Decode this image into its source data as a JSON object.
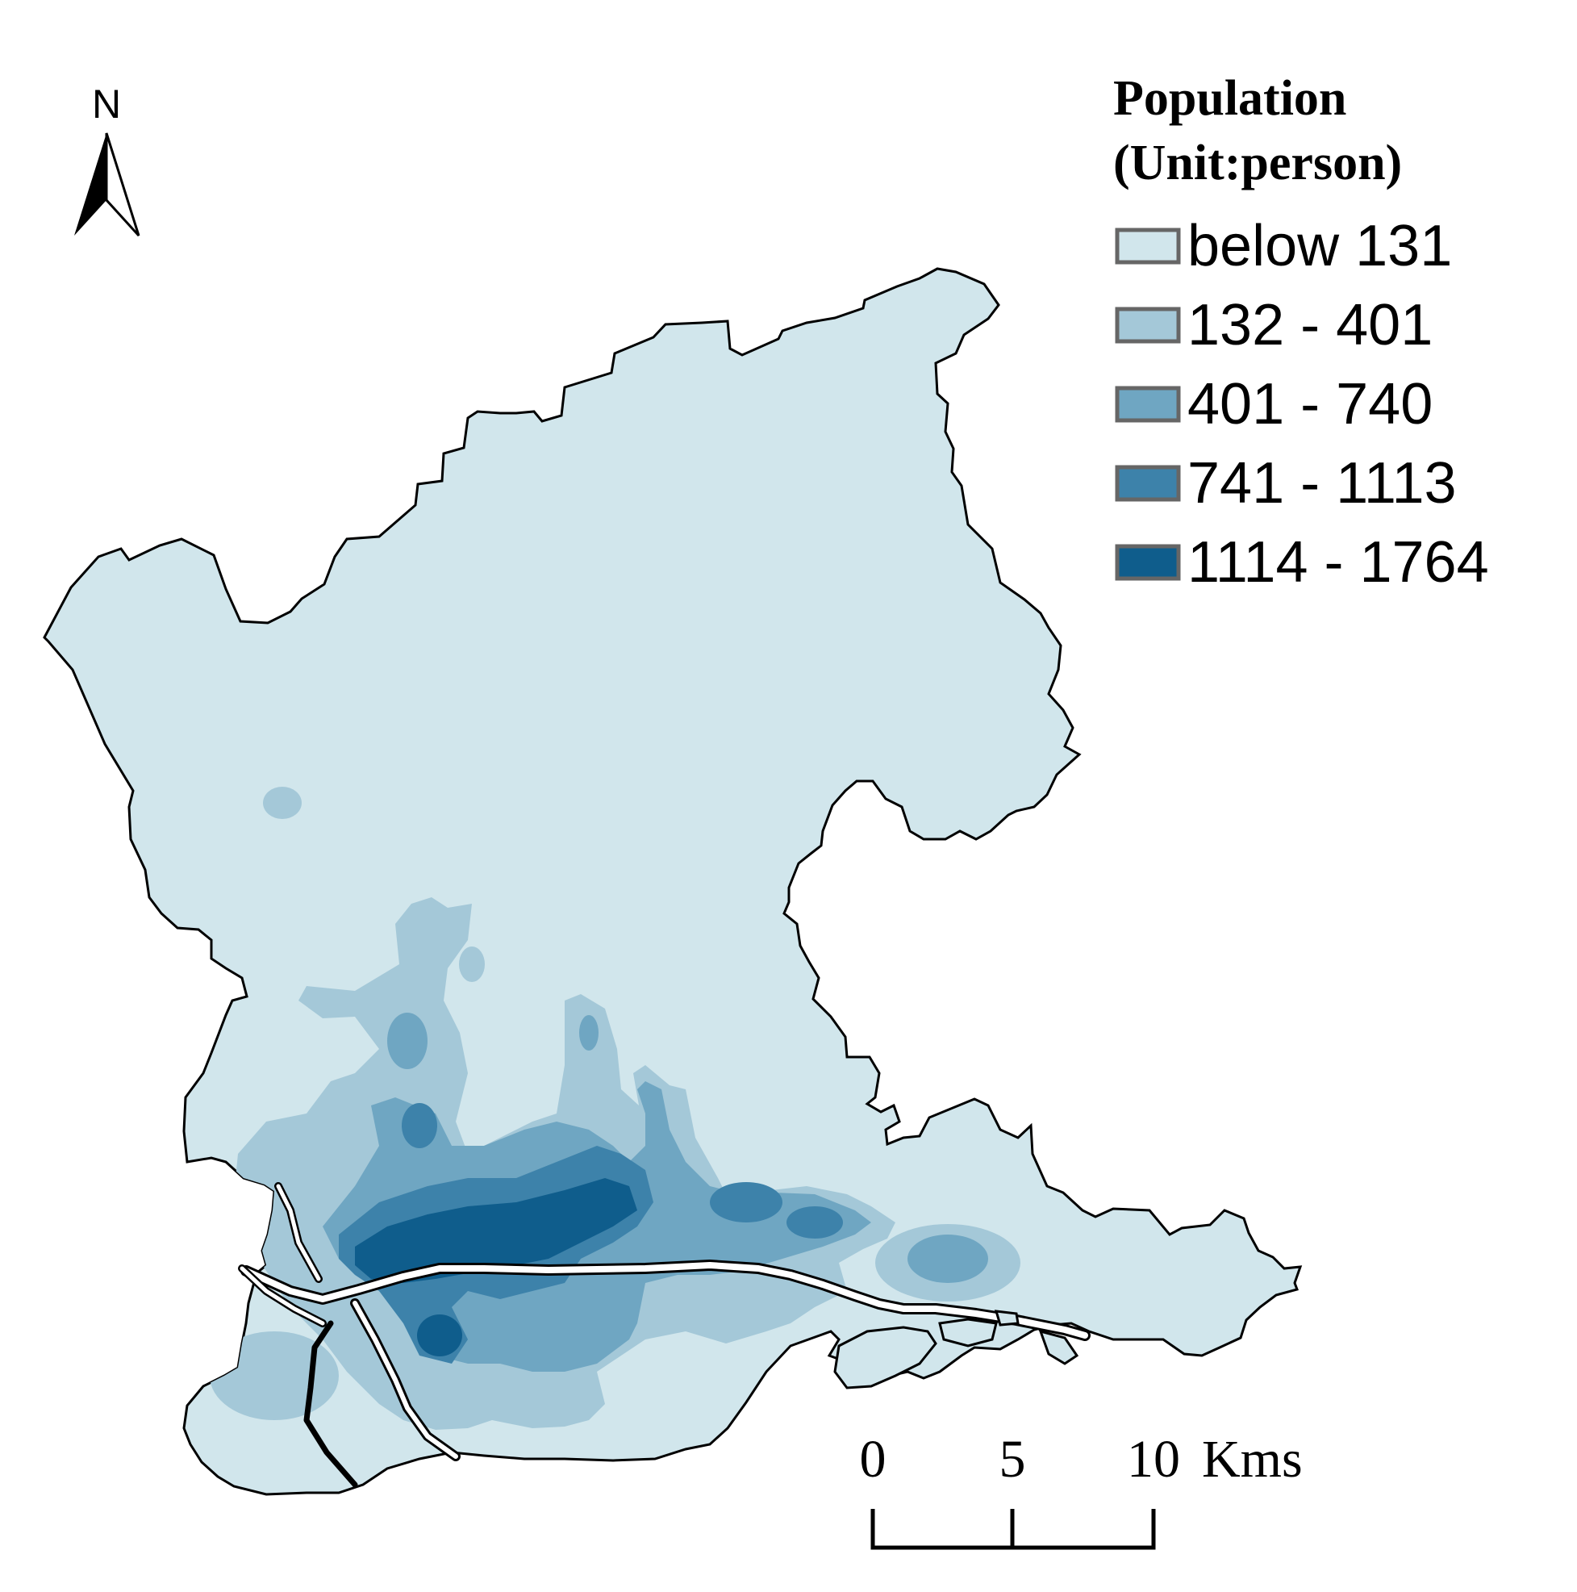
{
  "north_arrow": {
    "label": "N"
  },
  "legend": {
    "title_line1": "Population",
    "title_line2": "(Unit:person)",
    "classes": [
      {
        "label": "below 131",
        "color": "#d1e6ec"
      },
      {
        "label": "132 - 401",
        "color": "#a4c8d8"
      },
      {
        "label": "401 - 740",
        "color": "#6fa6c2"
      },
      {
        "label": "741 - 1113",
        "color": "#3d82aa"
      },
      {
        "label": "1114 - 1764",
        "color": "#0f5d8c"
      }
    ]
  },
  "scale_bar": {
    "ticks": [
      "0",
      "5",
      "10"
    ],
    "unit": "Kms"
  },
  "colors": {
    "boundary": "#000000",
    "river": "#ffffff"
  }
}
